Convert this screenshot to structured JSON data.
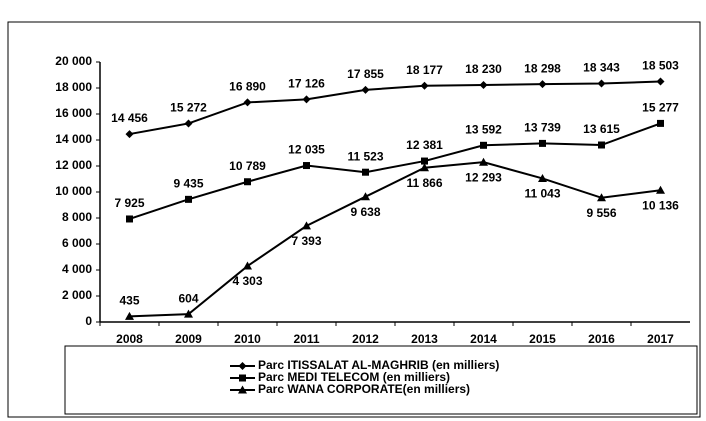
{
  "chart_data": {
    "type": "line",
    "categories": [
      "2008",
      "2009",
      "2010",
      "2011",
      "2012",
      "2013",
      "2014",
      "2015",
      "2016",
      "2017"
    ],
    "series": [
      {
        "name": "Parc ITISSALAT AL-MAGHRIB (en milliers)",
        "color": "#000000",
        "marker": "diamond",
        "values": [
          14456,
          15272,
          16890,
          17126,
          17855,
          18177,
          18230,
          18298,
          18343,
          18503
        ],
        "value_labels": [
          "14 456",
          "15 272",
          "16 890",
          "17 126",
          "17 855",
          "18 177",
          "18 230",
          "18 298",
          "18 343",
          "18 503"
        ]
      },
      {
        "name": "Parc MEDI TELECOM (en milliers)",
        "color": "#000000",
        "marker": "square",
        "values": [
          7925,
          9435,
          10789,
          12035,
          11523,
          12381,
          13592,
          13739,
          13615,
          15277
        ],
        "value_labels": [
          "7 925",
          "9 435",
          "10 789",
          "12 035",
          "11 523",
          "12 381",
          "13 592",
          "13 739",
          "13 615",
          "15 277"
        ]
      },
      {
        "name": "Parc WANA CORPORATE(en milliers)",
        "color": "#000000",
        "marker": "triangle",
        "values": [
          435,
          604,
          4303,
          7393,
          9638,
          11866,
          12293,
          11043,
          9556,
          10136
        ],
        "value_labels": [
          "435",
          "604",
          "4 303",
          "7 393",
          "9 638",
          "11 866",
          "12 293",
          "11 043",
          "9 556",
          "10 136"
        ]
      }
    ],
    "ylim": [
      0,
      20000
    ],
    "yticks": [
      0,
      {
        "value": 2000,
        "label": "2 000"
      },
      {
        "value": 4000,
        "label": "4 000"
      },
      {
        "value": 6000,
        "label": "6 000"
      },
      {
        "value": 8000,
        "label": "8 000"
      },
      {
        "value": 10000,
        "label": "10 000"
      },
      {
        "value": 12000,
        "label": "12 000"
      },
      {
        "value": 14000,
        "label": "14 000"
      },
      {
        "value": 16000,
        "label": "16 000"
      },
      {
        "value": 18000,
        "label": "18 000"
      },
      {
        "value": 20000,
        "label": "20 000"
      }
    ],
    "grid": false,
    "legend": "bottom"
  }
}
